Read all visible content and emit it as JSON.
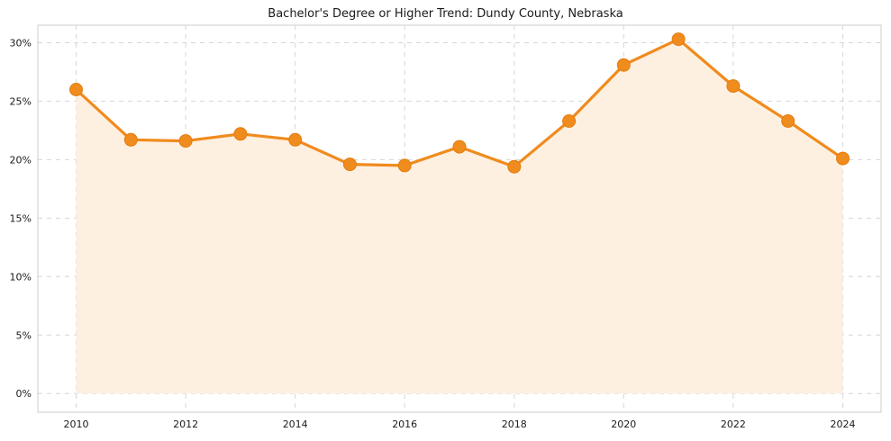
{
  "chart_data": {
    "type": "line",
    "title": "Bachelor's Degree or Higher Trend: Dundy County, Nebraska",
    "xlabel": "",
    "ylabel": "",
    "x": [
      2010,
      2011,
      2012,
      2013,
      2014,
      2015,
      2016,
      2017,
      2018,
      2019,
      2020,
      2021,
      2022,
      2023,
      2024
    ],
    "series": [
      {
        "name": "Bachelor's degree or higher (%)",
        "values": [
          26.0,
          21.7,
          21.6,
          22.2,
          21.7,
          19.6,
          19.5,
          21.1,
          19.4,
          23.3,
          28.1,
          30.3,
          26.3,
          23.3,
          20.1
        ]
      }
    ],
    "xticks": [
      2010,
      2012,
      2014,
      2016,
      2018,
      2020,
      2022,
      2024
    ],
    "yticks": [
      0,
      5,
      10,
      15,
      20,
      25,
      30
    ],
    "ytick_suffix": "%",
    "xlim": [
      2009.3,
      2024.7
    ],
    "ylim": [
      -1.6,
      31.5
    ],
    "grid": true,
    "grid_style": "dashed",
    "legend_position": "none",
    "area_fill": true,
    "fill_baseline": 0,
    "colors": {
      "line": "#f08b1d",
      "marker": "#f08b1d",
      "marker_edge": "#e27d10",
      "fill": "#fdf0e1",
      "grid": "#d6d6d6",
      "spine": "#cccccc",
      "tick_label": "#1a1a1a",
      "title": "#1a1a1a"
    }
  }
}
